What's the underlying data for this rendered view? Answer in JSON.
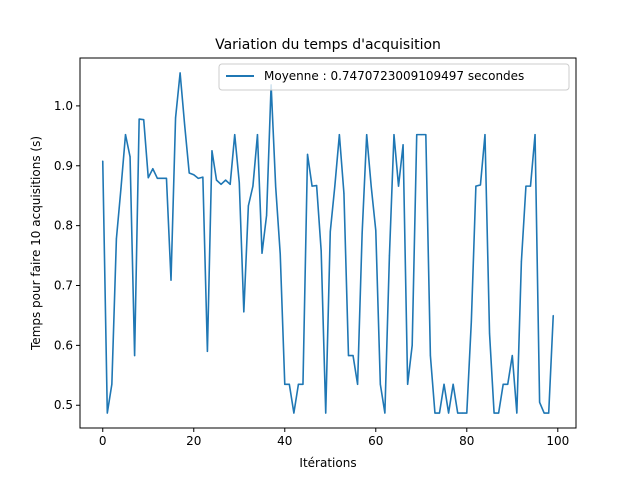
{
  "chart_data": {
    "type": "line",
    "title": "Variation du temps d'acquisition",
    "xlabel": "Itérations",
    "ylabel": "Temps pour faire 10 acquisitions (s)",
    "xlim": [
      -5,
      104
    ],
    "ylim": [
      0.462,
      1.08
    ],
    "xticks": [
      0,
      20,
      40,
      60,
      80,
      100
    ],
    "yticks": [
      0.5,
      0.6,
      0.7,
      0.8,
      0.9,
      1.0
    ],
    "xtick_labels": [
      "0",
      "20",
      "40",
      "60",
      "80",
      "100"
    ],
    "ytick_labels": [
      "0.5",
      "0.6",
      "0.7",
      "0.8",
      "0.9",
      "1.0"
    ],
    "grid": false,
    "legend_position": "top-right",
    "series": [
      {
        "name": "Moyenne : 0.7470723009109497 secondes",
        "color": "#1f77b4",
        "x": [
          0,
          1,
          2,
          3,
          4,
          5,
          6,
          7,
          8,
          9,
          10,
          11,
          12,
          13,
          14,
          15,
          16,
          17,
          18,
          19,
          20,
          21,
          22,
          23,
          24,
          25,
          26,
          27,
          28,
          29,
          30,
          31,
          32,
          33,
          34,
          35,
          36,
          37,
          38,
          39,
          40,
          41,
          42,
          43,
          44,
          45,
          46,
          47,
          48,
          49,
          50,
          51,
          52,
          53,
          54,
          55,
          56,
          57,
          58,
          59,
          60,
          61,
          62,
          63,
          64,
          65,
          66,
          67,
          68,
          69,
          70,
          71,
          72,
          73,
          74,
          75,
          76,
          77,
          78,
          79,
          80,
          81,
          82,
          83,
          84,
          85,
          86,
          87,
          88,
          89,
          90,
          91,
          92,
          93,
          94,
          95,
          96,
          97,
          98,
          99
        ],
        "values": [
          0.908,
          0.487,
          0.535,
          0.778,
          0.862,
          0.952,
          0.915,
          0.583,
          0.978,
          0.977,
          0.88,
          0.895,
          0.879,
          0.879,
          0.879,
          0.709,
          0.98,
          1.055,
          0.968,
          0.888,
          0.885,
          0.879,
          0.881,
          0.59,
          0.925,
          0.876,
          0.869,
          0.876,
          0.869,
          0.952,
          0.872,
          0.656,
          0.833,
          0.866,
          0.952,
          0.754,
          0.817,
          1.035,
          0.865,
          0.753,
          0.535,
          0.535,
          0.487,
          0.535,
          0.535,
          0.919,
          0.866,
          0.867,
          0.758,
          0.487,
          0.79,
          0.866,
          0.952,
          0.854,
          0.583,
          0.583,
          0.535,
          0.787,
          0.952,
          0.865,
          0.792,
          0.535,
          0.487,
          0.75,
          0.952,
          0.866,
          0.935,
          0.535,
          0.6,
          0.952,
          0.952,
          0.952,
          0.583,
          0.487,
          0.487,
          0.535,
          0.487,
          0.535,
          0.487,
          0.487,
          0.487,
          0.64,
          0.866,
          0.868,
          0.952,
          0.62,
          0.487,
          0.487,
          0.535,
          0.535,
          0.583,
          0.487,
          0.74,
          0.866,
          0.866,
          0.952,
          0.505,
          0.487,
          0.487,
          0.65
        ]
      }
    ]
  }
}
